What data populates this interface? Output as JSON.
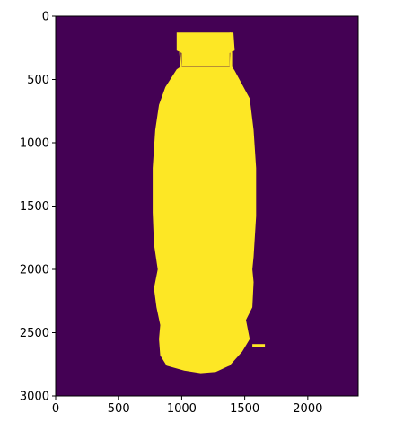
{
  "chart_data": {
    "type": "heatmap",
    "title": "",
    "xlabel": "",
    "ylabel": "",
    "xlim": [
      0,
      2400
    ],
    "ylim": [
      3000,
      0
    ],
    "xticks": [
      0,
      500,
      1000,
      1500,
      2000
    ],
    "yticks": [
      0,
      500,
      1000,
      1500,
      2000,
      2500,
      3000
    ],
    "colormap": "viridis",
    "colors": {
      "background": "#440154",
      "foreground": "#fde725"
    },
    "binary_mask": true,
    "grid": false,
    "legend": "none",
    "shape_outline": [
      [
        980,
        130
      ],
      [
        1000,
        400
      ],
      [
        1380,
        400
      ],
      [
        1390,
        130
      ],
      [
        1380,
        130
      ],
      [
        1370,
        270
      ],
      [
        1400,
        285
      ],
      [
        1400,
        400
      ],
      [
        1420,
        430
      ],
      [
        1540,
        650
      ],
      [
        1570,
        900
      ],
      [
        1590,
        1200
      ],
      [
        1590,
        1580
      ],
      [
        1570,
        1900
      ],
      [
        1560,
        2000
      ],
      [
        1570,
        2100
      ],
      [
        1560,
        2300
      ],
      [
        1510,
        2400
      ],
      [
        1540,
        2550
      ],
      [
        1480,
        2650
      ],
      [
        1380,
        2760
      ],
      [
        1270,
        2810
      ],
      [
        1150,
        2820
      ],
      [
        1020,
        2800
      ],
      [
        880,
        2760
      ],
      [
        830,
        2680
      ],
      [
        820,
        2550
      ],
      [
        830,
        2440
      ],
      [
        800,
        2300
      ],
      [
        780,
        2150
      ],
      [
        810,
        2000
      ],
      [
        780,
        1800
      ],
      [
        770,
        1550
      ],
      [
        770,
        1200
      ],
      [
        790,
        900
      ],
      [
        820,
        700
      ],
      [
        870,
        560
      ],
      [
        960,
        420
      ],
      [
        990,
        400
      ],
      [
        980,
        285
      ],
      [
        990,
        270
      ]
    ],
    "side_blob": [
      [
        1560,
        2590
      ],
      [
        1660,
        2590
      ],
      [
        1660,
        2610
      ],
      [
        1560,
        2610
      ]
    ],
    "top_cap": [
      [
        960,
        130
      ],
      [
        1410,
        130
      ],
      [
        1420,
        270
      ],
      [
        1380,
        290
      ],
      [
        1380,
        390
      ],
      [
        1000,
        390
      ],
      [
        1000,
        290
      ],
      [
        960,
        270
      ]
    ]
  }
}
